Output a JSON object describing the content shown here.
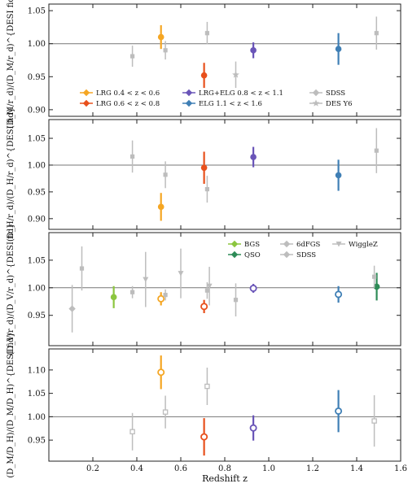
{
  "figure": {
    "xlabel": "Redshift z"
  },
  "colors": {
    "BGS": "#8cc63f",
    "LRG1": "#f5a623",
    "LRG2": "#e8501c",
    "LRGELG": "#6a55b8",
    "ELG": "#3f7fb5",
    "QSO": "#2e8b57",
    "external": "#bdbdbd"
  },
  "chart_data": [
    {
      "type": "scatter",
      "ylabel": "(D_M/r_d)/(D_M/r_d)^{DESI fid}",
      "ylim": [
        0.89,
        1.06
      ],
      "yticks": [
        "0.90",
        "0.95",
        "1.00",
        "1.05"
      ],
      "xlim": [
        0.0,
        1.6
      ],
      "series": [
        {
          "name": "LRG 0.4 < z < 0.6",
          "key": "LRG1",
          "x": [
            0.51
          ],
          "y": [
            1.01
          ],
          "err": [
            0.018
          ]
        },
        {
          "name": "LRG 0.6 < z < 0.8",
          "key": "LRG2",
          "x": [
            0.706
          ],
          "y": [
            0.952
          ],
          "err": [
            0.019
          ]
        },
        {
          "name": "LRG+ELG 0.8 < z < 1.1",
          "key": "LRGELG",
          "x": [
            0.93
          ],
          "y": [
            0.99
          ],
          "err": [
            0.012
          ]
        },
        {
          "name": "ELG 1.1 < z < 1.6",
          "key": "ELG",
          "x": [
            1.317
          ],
          "y": [
            0.992
          ],
          "err": [
            0.024
          ]
        },
        {
          "name": "SDSS",
          "key": "external",
          "marker": "square",
          "x": [
            0.38,
            0.53,
            0.72,
            1.49
          ],
          "y": [
            0.981,
            0.99,
            1.016,
            1.016
          ],
          "err": [
            0.016,
            0.014,
            0.017,
            0.025
          ]
        },
        {
          "name": "DES Y6",
          "key": "external",
          "marker": "star",
          "x": [
            0.85
          ],
          "y": [
            0.953
          ],
          "err": [
            0.02
          ]
        }
      ],
      "legend": {
        "location": "lower-center",
        "columns": 3
      }
    },
    {
      "type": "scatter",
      "ylabel": "(D_H/r_d)/(D_H/r_d)^{DESI fid}",
      "ylim": [
        0.88,
        1.085
      ],
      "yticks": [
        "0.90",
        "0.95",
        "1.00",
        "1.05"
      ],
      "xlim": [
        0.0,
        1.6
      ],
      "series": [
        {
          "key": "LRG1",
          "x": [
            0.51
          ],
          "y": [
            0.922
          ],
          "err": [
            0.026
          ]
        },
        {
          "key": "LRG2",
          "x": [
            0.706
          ],
          "y": [
            0.995
          ],
          "err": [
            0.03
          ]
        },
        {
          "key": "LRGELG",
          "x": [
            0.93
          ],
          "y": [
            1.015
          ],
          "err": [
            0.019
          ]
        },
        {
          "key": "ELG",
          "x": [
            1.317
          ],
          "y": [
            0.981
          ],
          "err": [
            0.029
          ]
        },
        {
          "key": "external",
          "marker": "square",
          "x": [
            0.38,
            0.53,
            0.72,
            1.49
          ],
          "y": [
            1.016,
            0.982,
            0.955,
            1.027
          ],
          "err": [
            0.03,
            0.025,
            0.025,
            0.042
          ]
        }
      ]
    },
    {
      "type": "scatter",
      "ylabel": "(D_V/r_d)/(D_V/r_d)^{DESI fid}",
      "ylim": [
        0.895,
        1.1
      ],
      "yticks": [
        "0.95",
        "1.00",
        "1.05"
      ],
      "xlim": [
        0.0,
        1.6
      ],
      "series": [
        {
          "name": "BGS",
          "key": "BGS",
          "marker": "filled",
          "x": [
            0.295
          ],
          "y": [
            0.983
          ],
          "err": [
            0.02
          ]
        },
        {
          "key": "LRG1",
          "marker": "open",
          "x": [
            0.51
          ],
          "y": [
            0.98
          ],
          "err": [
            0.012
          ]
        },
        {
          "key": "LRG2",
          "marker": "open",
          "x": [
            0.706
          ],
          "y": [
            0.966
          ],
          "err": [
            0.012
          ]
        },
        {
          "key": "LRGELG",
          "marker": "open",
          "x": [
            0.93
          ],
          "y": [
            0.999
          ],
          "err": [
            0.008
          ]
        },
        {
          "key": "ELG",
          "marker": "open",
          "x": [
            1.317
          ],
          "y": [
            0.988
          ],
          "err": [
            0.015
          ]
        },
        {
          "name": "QSO",
          "key": "QSO",
          "marker": "filled",
          "x": [
            1.491
          ],
          "y": [
            1.002
          ],
          "err": [
            0.025
          ]
        },
        {
          "name": "6dFGS",
          "key": "external",
          "marker": "diamond",
          "x": [
            0.106
          ],
          "y": [
            0.962
          ],
          "err": [
            0.043
          ]
        },
        {
          "name": "SDSS",
          "key": "external",
          "marker": "square",
          "x": [
            0.15,
            0.38,
            0.53,
            0.72,
            0.85,
            1.48
          ],
          "y": [
            1.035,
            0.992,
            0.987,
            0.995,
            0.978,
            1.02
          ],
          "err": [
            0.04,
            0.011,
            0.01,
            0.015,
            0.03,
            0.02
          ]
        },
        {
          "name": "WiggleZ",
          "key": "external",
          "marker": "triangle",
          "x": [
            0.44,
            0.6,
            0.73
          ],
          "y": [
            1.015,
            1.026,
            1.003
          ],
          "err": [
            0.05,
            0.045,
            0.035
          ]
        }
      ],
      "legend": {
        "location": "top-right",
        "columns": 3
      }
    },
    {
      "type": "scatter",
      "ylabel": "(D_M/D_H)/(D_M/D_H)^{DESI fid}",
      "ylim": [
        0.905,
        1.145
      ],
      "yticks": [
        "0.95",
        "1.00",
        "1.05",
        "1.10"
      ],
      "xlim": [
        0.0,
        1.6
      ],
      "series": [
        {
          "key": "LRG1",
          "marker": "open",
          "x": [
            0.51
          ],
          "y": [
            1.095
          ],
          "err": [
            0.036
          ]
        },
        {
          "key": "LRG2",
          "marker": "open",
          "x": [
            0.706
          ],
          "y": [
            0.957
          ],
          "err": [
            0.04
          ]
        },
        {
          "key": "LRGELG",
          "marker": "open",
          "x": [
            0.93
          ],
          "y": [
            0.976
          ],
          "err": [
            0.027
          ]
        },
        {
          "key": "ELG",
          "marker": "open",
          "x": [
            1.317
          ],
          "y": [
            1.012
          ],
          "err": [
            0.045
          ]
        },
        {
          "key": "external",
          "marker": "open-square",
          "x": [
            0.38,
            0.53,
            0.72,
            1.48
          ],
          "y": [
            0.968,
            1.01,
            1.065,
            0.991
          ],
          "err": [
            0.04,
            0.035,
            0.04,
            0.055
          ]
        }
      ]
    }
  ],
  "xticks": [
    "0.2",
    "0.4",
    "0.6",
    "0.8",
    "1.0",
    "1.2",
    "1.4",
    "1.6"
  ],
  "xtick_values": [
    0.2,
    0.4,
    0.6,
    0.8,
    1.0,
    1.2,
    1.4,
    1.6
  ],
  "legend_panel1": [
    {
      "label": "LRG 0.4 < z < 0.6",
      "key": "LRG1",
      "marker": "diamond"
    },
    {
      "label": "LRG+ELG 0.8 < z < 1.1",
      "key": "LRGELG",
      "marker": "diamond"
    },
    {
      "label": "SDSS",
      "key": "external",
      "marker": "diamond"
    },
    {
      "label": "LRG 0.6 < z < 0.8",
      "key": "LRG2",
      "marker": "diamond"
    },
    {
      "label": "ELG 1.1 < z < 1.6",
      "key": "ELG",
      "marker": "diamond"
    },
    {
      "label": "DES Y6",
      "key": "external",
      "marker": "star"
    }
  ],
  "legend_panel3": [
    {
      "label": "BGS",
      "key": "BGS",
      "marker": "diamond"
    },
    {
      "label": "6dFGS",
      "key": "external",
      "marker": "diamond"
    },
    {
      "label": "WiggleZ",
      "key": "external",
      "marker": "triangle"
    },
    {
      "label": "QSO",
      "key": "QSO",
      "marker": "diamond"
    },
    {
      "label": "SDSS",
      "key": "external",
      "marker": "diamond"
    }
  ]
}
